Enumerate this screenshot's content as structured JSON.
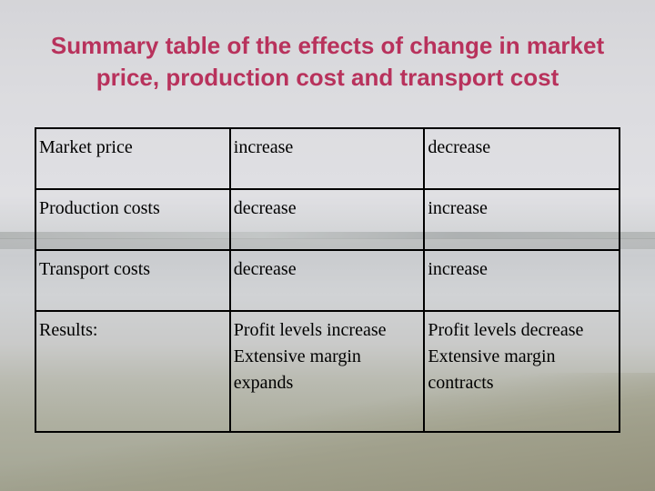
{
  "slide": {
    "title_line1": "Summary table of the effects of change in market",
    "title_line2": "price, production cost and transport cost"
  },
  "table": {
    "rows": [
      {
        "label": "Market price",
        "col1": "increase",
        "col2": "decrease"
      },
      {
        "label": "Production costs",
        "col1": "decrease",
        "col2": "increase"
      },
      {
        "label": "Transport costs",
        "col1": "decrease",
        "col2": "increase"
      }
    ],
    "results": {
      "label": "Results:",
      "col1": [
        "Profit levels increase",
        "Extensive margin",
        "expands"
      ],
      "col2": [
        "Profit levels decrease",
        "Extensive margin",
        "contracts"
      ]
    }
  },
  "colors": {
    "title": "#b8325c",
    "text": "#000000",
    "border": "#000000"
  }
}
